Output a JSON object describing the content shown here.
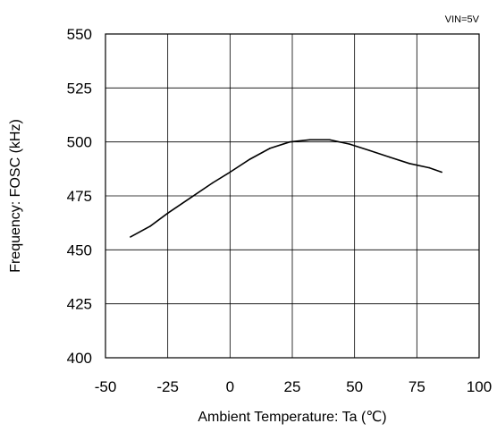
{
  "chart_data": {
    "type": "line",
    "annotation": "VIN=5V",
    "xlabel": "Ambient Temperature: Ta (℃)",
    "ylabel": "Frequency: FOSC (kHz)",
    "xlim": [
      -50,
      100
    ],
    "ylim": [
      400,
      550
    ],
    "xticks": [
      -50,
      -25,
      0,
      25,
      50,
      75,
      100
    ],
    "yticks": [
      400,
      425,
      450,
      475,
      500,
      525,
      550
    ],
    "grid": true,
    "series": [
      {
        "x": [
          -40,
          -32,
          -25,
          -16,
          -7,
          0,
          8,
          16,
          24,
          32,
          40,
          48,
          56,
          64,
          72,
          80,
          85
        ],
        "y": [
          456,
          461,
          467,
          474,
          481,
          486,
          492,
          497,
          500,
          501,
          501,
          499,
          496,
          493,
          490,
          488,
          486
        ]
      }
    ]
  }
}
